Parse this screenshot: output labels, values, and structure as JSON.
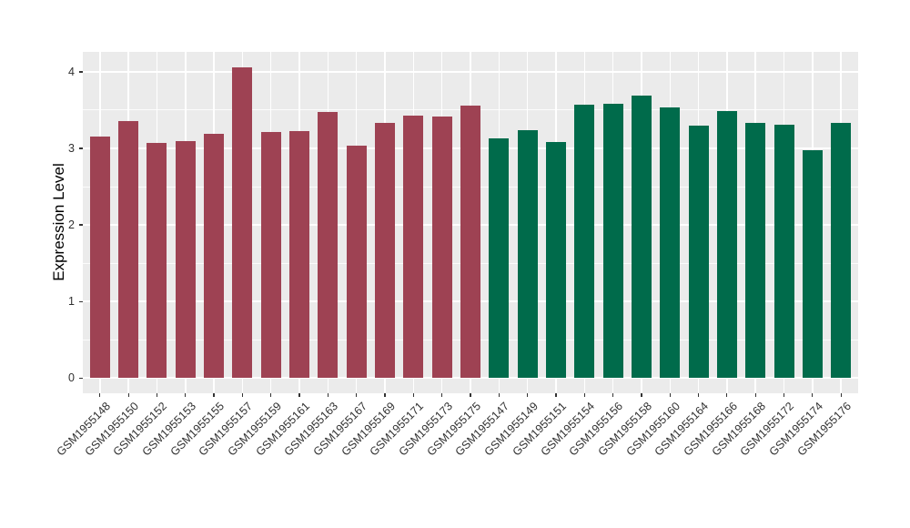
{
  "chart_data": {
    "type": "bar",
    "title": "",
    "xlabel": "",
    "ylabel": "Expression Level",
    "ylim": [
      0,
      4.26
    ],
    "yticks": [
      0,
      1,
      2,
      3,
      4
    ],
    "yminorticks": [
      0.5,
      1.5,
      2.5,
      3.5
    ],
    "grid": "white major and minor horizontal lines plus vertical line per category on gray panel",
    "legend_position": "none",
    "panel_background": "#EBEBEB",
    "gridline_color": "#FFFFFF",
    "categories": [
      "GSM1955148",
      "GSM1955150",
      "GSM1955152",
      "GSM1955153",
      "GSM1955155",
      "GSM1955157",
      "GSM1955159",
      "GSM1955161",
      "GSM1955163",
      "GSM1955167",
      "GSM1955169",
      "GSM1955171",
      "GSM1955173",
      "GSM1955175",
      "GSM1955147",
      "GSM1955149",
      "GSM1955151",
      "GSM1955154",
      "GSM1955156",
      "GSM1955158",
      "GSM1955160",
      "GSM1955164",
      "GSM1955166",
      "GSM1955168",
      "GSM1955172",
      "GSM1955174",
      "GSM1955176"
    ],
    "values": [
      3.16,
      3.36,
      3.07,
      3.1,
      3.19,
      4.06,
      3.21,
      3.22,
      3.48,
      3.03,
      3.33,
      3.43,
      3.42,
      3.56,
      3.13,
      3.24,
      3.08,
      3.57,
      3.58,
      3.69,
      3.54,
      3.3,
      3.49,
      3.33,
      3.31,
      2.98,
      3.33
    ],
    "bar_group_of_each": [
      "maroon",
      "maroon",
      "maroon",
      "maroon",
      "maroon",
      "maroon",
      "maroon",
      "maroon",
      "maroon",
      "maroon",
      "maroon",
      "maroon",
      "maroon",
      "maroon",
      "green",
      "green",
      "green",
      "green",
      "green",
      "green",
      "green",
      "green",
      "green",
      "green",
      "green",
      "green",
      "green"
    ],
    "group_colors": {
      "maroon": "#9E4253",
      "green": "#006B4B"
    }
  }
}
